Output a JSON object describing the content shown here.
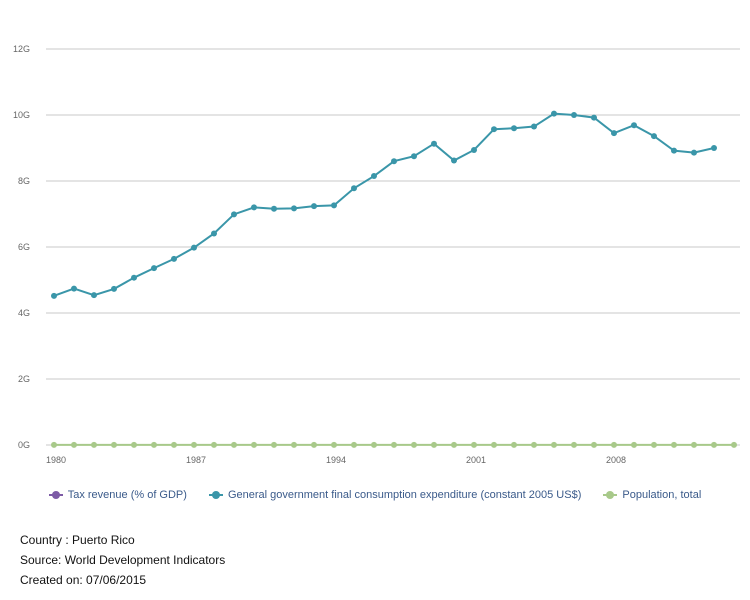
{
  "chart_data": {
    "type": "line",
    "title": "",
    "xlabel": "",
    "ylabel": "",
    "ylim": [
      0,
      12
    ],
    "xlim": [
      1980,
      2014
    ],
    "y_ticks": [
      "0G",
      "2G",
      "4G",
      "6G",
      "8G",
      "10G",
      "12G"
    ],
    "x_ticks": [
      "1980",
      "1987",
      "1994",
      "2001",
      "2008"
    ],
    "grid": true,
    "legend_position": "bottom",
    "series": [
      {
        "name": "Tax revenue (% of GDP)",
        "color": "#7d5ba6",
        "x": [],
        "values": []
      },
      {
        "name": "General government final consumption expenditure (constant 2005 US$)",
        "color": "#3a96a9",
        "x": [
          1980,
          1981,
          1982,
          1983,
          1984,
          1985,
          1986,
          1987,
          1988,
          1989,
          1990,
          1991,
          1992,
          1993,
          1994,
          1995,
          1996,
          1997,
          1998,
          1999,
          2000,
          2001,
          2002,
          2003,
          2004,
          2005,
          2006,
          2007,
          2008,
          2009,
          2010,
          2011,
          2012,
          2013
        ],
        "values": [
          4.52,
          4.74,
          4.54,
          4.73,
          5.07,
          5.36,
          5.64,
          5.98,
          6.41,
          6.99,
          7.2,
          7.16,
          7.17,
          7.24,
          7.26,
          7.78,
          8.15,
          8.6,
          8.75,
          9.13,
          8.62,
          8.94,
          9.57,
          9.6,
          9.65,
          10.04,
          10.0,
          9.92,
          9.45,
          9.69,
          9.36,
          8.92,
          8.86,
          9.0
        ]
      },
      {
        "name": "Population, total",
        "color": "#a8c98a",
        "x": [
          1980,
          1981,
          1982,
          1983,
          1984,
          1985,
          1986,
          1987,
          1988,
          1989,
          1990,
          1991,
          1992,
          1993,
          1994,
          1995,
          1996,
          1997,
          1998,
          1999,
          2000,
          2001,
          2002,
          2003,
          2004,
          2005,
          2006,
          2007,
          2008,
          2009,
          2010,
          2011,
          2012,
          2013,
          2014
        ],
        "values": [
          0.0032,
          0.0032,
          0.0033,
          0.0033,
          0.0033,
          0.0034,
          0.0034,
          0.0034,
          0.0035,
          0.0035,
          0.0035,
          0.0036,
          0.0036,
          0.0036,
          0.0036,
          0.0037,
          0.0037,
          0.0037,
          0.0038,
          0.0038,
          0.0038,
          0.0038,
          0.0038,
          0.0038,
          0.0038,
          0.0038,
          0.0038,
          0.0038,
          0.0037,
          0.0037,
          0.0037,
          0.0037,
          0.0036,
          0.0036,
          0.0035
        ]
      }
    ]
  },
  "footer": {
    "country": "Country : Puerto Rico",
    "source": "Source: World Development Indicators",
    "created": "Created on: 07/06/2015"
  }
}
